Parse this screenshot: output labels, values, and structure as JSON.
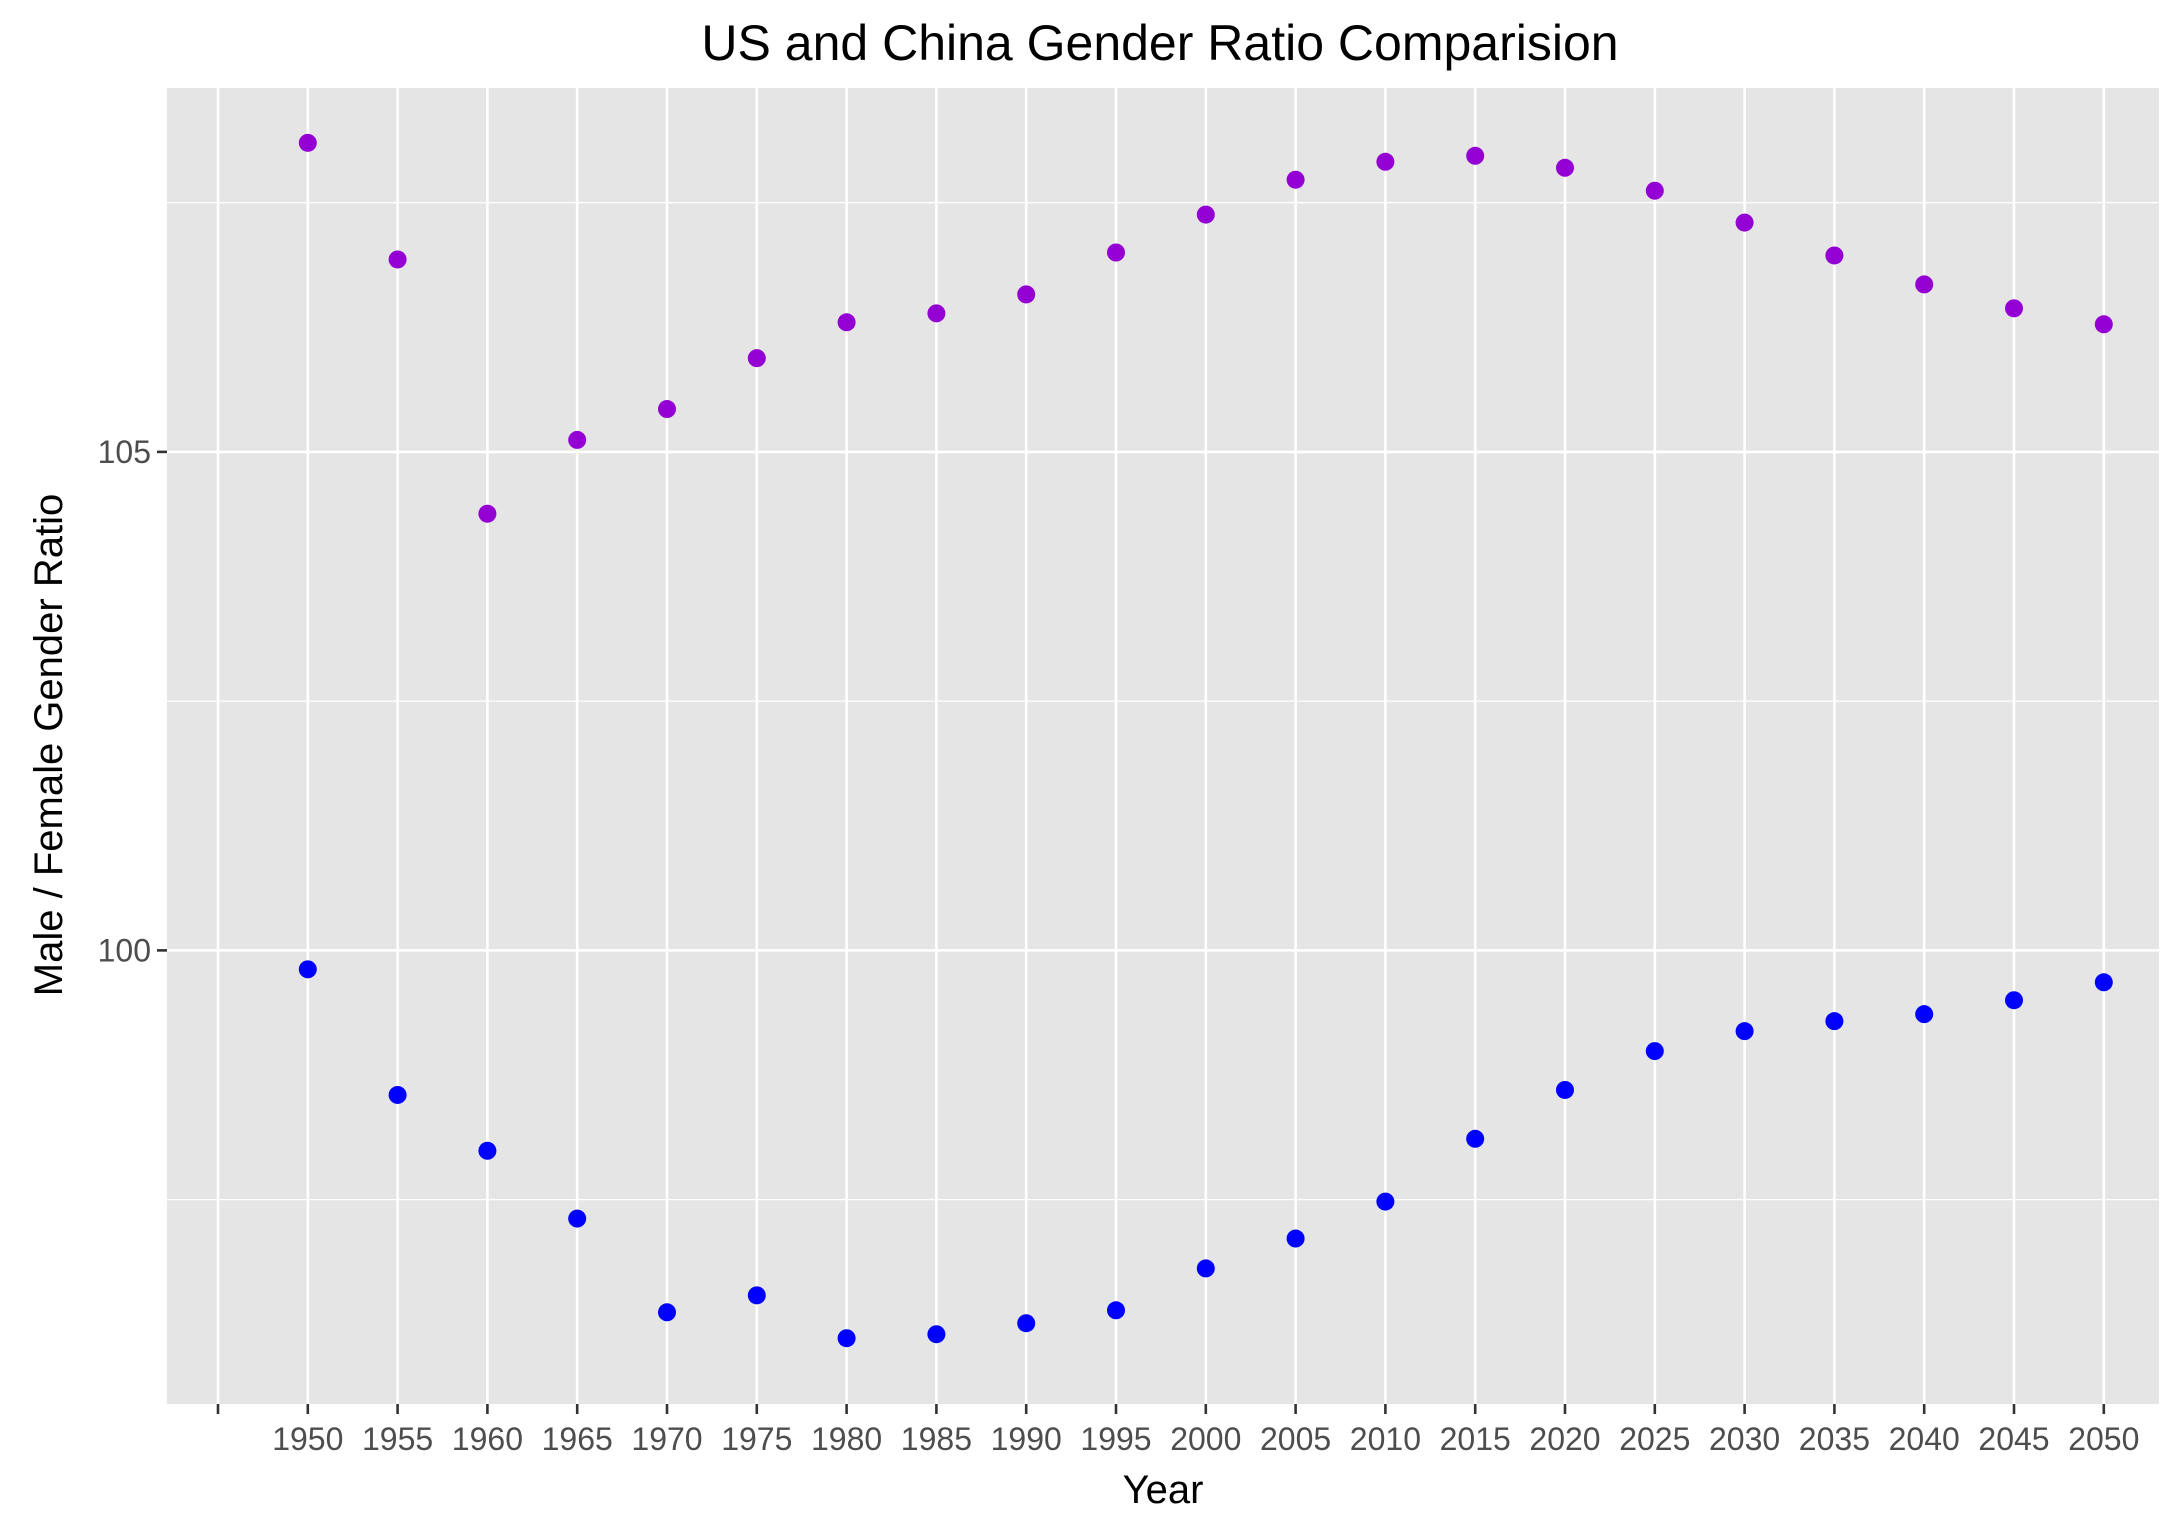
{
  "chart_data": {
    "type": "scatter",
    "title": "US and China Gender Ratio Comparision",
    "xlabel": "Year",
    "ylabel": "Male / Female Gender Ratio",
    "x_ticks": [
      "",
      "1950",
      "1955",
      "1960",
      "1965",
      "1970",
      "1975",
      "1980",
      "1985",
      "1990",
      "1995",
      "2000",
      "2005",
      "2010",
      "2015",
      "2020",
      "2025",
      "2030",
      "2035",
      "2040",
      "2045",
      "2050"
    ],
    "y_ticks": [
      100,
      105
    ],
    "ylim": [
      95.45,
      108.65
    ],
    "grid": true,
    "legend": "none",
    "background": "#e5e5e5",
    "grid_color": "#ffffff",
    "series": [
      {
        "color": "#9400d3",
        "x": [
          1950,
          1955,
          1960,
          1965,
          1970,
          1975,
          1980,
          1985,
          1990,
          1995,
          2000,
          2005,
          2010,
          2015,
          2020,
          2025,
          2030,
          2035,
          2040,
          2045,
          2050
        ],
        "y": [
          108.1,
          106.93,
          104.38,
          105.12,
          105.43,
          105.94,
          106.3,
          106.39,
          106.58,
          107.0,
          107.38,
          107.73,
          107.91,
          107.97,
          107.85,
          107.62,
          107.3,
          106.97,
          106.68,
          106.44,
          106.28
        ]
      },
      {
        "color": "#0000ff",
        "x": [
          1950,
          1955,
          1960,
          1965,
          1970,
          1975,
          1980,
          1985,
          1990,
          1995,
          2000,
          2005,
          2010,
          2015,
          2020,
          2025,
          2030,
          2035,
          2040,
          2045,
          2050
        ],
        "y": [
          99.81,
          98.55,
          97.99,
          97.31,
          96.37,
          96.54,
          96.11,
          96.15,
          96.26,
          96.39,
          96.81,
          97.11,
          97.48,
          98.11,
          98.6,
          98.99,
          99.19,
          99.29,
          99.36,
          99.5,
          99.68
        ]
      }
    ]
  }
}
